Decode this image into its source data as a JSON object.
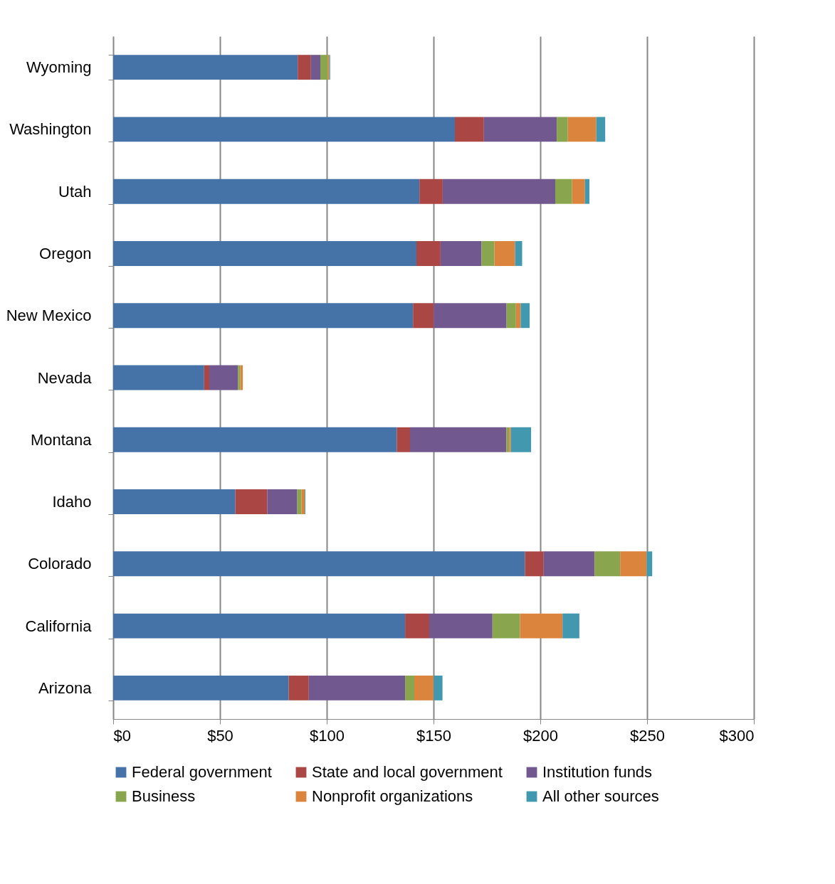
{
  "chart_data": {
    "type": "bar",
    "orientation": "horizontal",
    "stacked": true,
    "categories": [
      "Wyoming",
      "Washington",
      "Utah",
      "Oregon",
      "New Mexico",
      "Nevada",
      "Montana",
      "Idaho",
      "Colorado",
      "California",
      "Arizona"
    ],
    "series": [
      {
        "name": "Federal government",
        "color": "#4572a7",
        "values": [
          86.4,
          160.0,
          143.4,
          142.0,
          140.4,
          42.6,
          132.8,
          57.2,
          192.8,
          136.7,
          82.2
        ]
      },
      {
        "name": "State and local government",
        "color": "#aa4643",
        "values": [
          6.2,
          13.6,
          10.9,
          11.3,
          9.7,
          2.4,
          6.2,
          15.0,
          8.8,
          11.3,
          9.4
        ]
      },
      {
        "name": "Institution funds",
        "color": "#71588f",
        "values": [
          4.4,
          34.1,
          52.7,
          19.2,
          34.1,
          13.4,
          45.1,
          14.0,
          23.8,
          29.6,
          45.1
        ]
      },
      {
        "name": "Business",
        "color": "#89a54e",
        "values": [
          3.5,
          5.2,
          7.9,
          6.0,
          4.4,
          1.1,
          1.3,
          2.0,
          12.0,
          12.9,
          4.3
        ]
      },
      {
        "name": "Nonprofit organizations",
        "color": "#db843d",
        "values": [
          0.7,
          13.3,
          6.0,
          9.7,
          2.2,
          1.2,
          0.8,
          1.5,
          12.4,
          19.9,
          9.0
        ]
      },
      {
        "name": "All other sources",
        "color": "#4198af",
        "values": [
          0.4,
          4.2,
          2.1,
          3.3,
          4.2,
          null,
          9.5,
          0.3,
          2.6,
          7.9,
          4.2
        ]
      }
    ],
    "xlim": [
      0,
      300
    ],
    "xticks": [
      {
        "value": 0,
        "label": "$0"
      },
      {
        "value": 50,
        "label": "$50"
      },
      {
        "value": 100,
        "label": "$100"
      },
      {
        "value": 150,
        "label": "$150"
      },
      {
        "value": 200,
        "label": "$200"
      },
      {
        "value": 250,
        "label": "$250"
      },
      {
        "value": 300,
        "label": "$300"
      }
    ],
    "grid": "x",
    "legend": "bottom"
  }
}
